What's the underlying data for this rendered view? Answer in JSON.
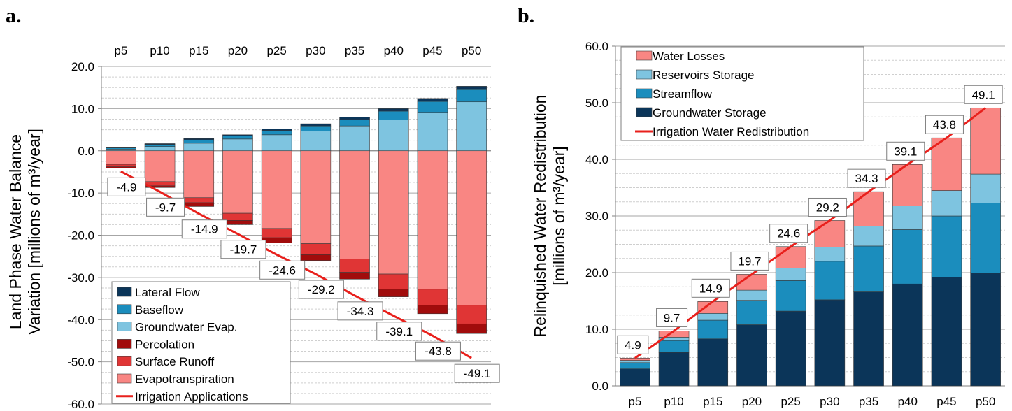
{
  "chart_data": [
    {
      "panel": "a.",
      "type": "bar",
      "stacked": true,
      "ylabel_line1": "Land Phase Water Balance",
      "ylabel_line2": "Variation [millions of m³/year]",
      "ylim": [
        -60,
        20
      ],
      "yticks": [
        "20.0",
        "10.0",
        "0.0",
        "-10.0",
        "-20.0",
        "-30.0",
        "-40.0",
        "-50.0",
        "-60.0"
      ],
      "categories": [
        "p5",
        "p10",
        "p15",
        "p20",
        "p25",
        "p30",
        "p35",
        "p40",
        "p45",
        "p50"
      ],
      "category_axis_position": "top",
      "grid": true,
      "legend_position": "bottom-left",
      "positive_series": [
        {
          "name": "Groundwater Evap.",
          "color": "#7ec4e0",
          "values": [
            0.4,
            1.0,
            1.8,
            2.8,
            3.8,
            4.7,
            5.9,
            7.3,
            9.1,
            11.6
          ]
        },
        {
          "name": "Baseflow",
          "color": "#1b8dbd",
          "values": [
            0.3,
            0.5,
            0.8,
            0.7,
            1.0,
            1.2,
            1.5,
            2.1,
            2.6,
            2.9
          ]
        },
        {
          "name": "Lateral Flow",
          "color": "#0b3559",
          "values": [
            0.1,
            0.2,
            0.3,
            0.3,
            0.4,
            0.5,
            0.6,
            0.6,
            0.7,
            0.8
          ]
        }
      ],
      "negative_series": [
        {
          "name": "Evapotranspiration",
          "color": "#f98683",
          "values": [
            -3.2,
            -7.3,
            -11.1,
            -14.8,
            -18.4,
            -22.0,
            -25.6,
            -29.2,
            -32.8,
            -36.6
          ]
        },
        {
          "name": "Surface Runoff",
          "color": "#e03535",
          "values": [
            -0.6,
            -1.0,
            -1.2,
            -1.7,
            -2.2,
            -2.6,
            -3.2,
            -3.6,
            -3.8,
            -4.4
          ]
        },
        {
          "name": "Percolation",
          "color": "#a10c0c",
          "values": [
            -0.3,
            -0.4,
            -0.9,
            -1.0,
            -1.2,
            -1.4,
            -1.6,
            -1.8,
            -2.0,
            -2.3
          ]
        }
      ],
      "line_series": {
        "name": "Irrigation Applications",
        "color": "#e8201c",
        "values": [
          -4.9,
          -9.7,
          -14.9,
          -19.7,
          -24.6,
          -29.2,
          -34.3,
          -39.1,
          -43.8,
          -49.1
        ]
      },
      "data_labels": [
        "-4.9",
        "-9.7",
        "-14.9",
        "-19.7",
        "-24.6",
        "-29.2",
        "-34.3",
        "-39.1",
        "-43.8",
        "-49.1"
      ],
      "legend_order": [
        "Lateral Flow",
        "Baseflow",
        "Groundwater Evap.",
        "Percolation",
        "Surface Runoff",
        "Evapotranspiration",
        "Irrigation Applications"
      ]
    },
    {
      "panel": "b.",
      "type": "bar",
      "stacked": true,
      "ylabel_line1": "Relinquished Water Redistribution",
      "ylabel_line2": "[millions of m³/year]",
      "ylim": [
        0,
        60
      ],
      "yticks": [
        "60.0",
        "50.0",
        "40.0",
        "30.0",
        "20.0",
        "10.0",
        "0.0"
      ],
      "categories": [
        "p5",
        "p10",
        "p15",
        "p20",
        "p25",
        "p30",
        "p35",
        "p40",
        "p45",
        "p50"
      ],
      "category_axis_position": "bottom",
      "grid": true,
      "legend_position": "top-left",
      "series": [
        {
          "name": "Groundwater Storage",
          "color": "#0b3559",
          "values": [
            3.0,
            5.9,
            8.3,
            10.8,
            13.2,
            15.2,
            16.6,
            18.0,
            19.2,
            19.9
          ]
        },
        {
          "name": "Streamflow",
          "color": "#1b8dbd",
          "values": [
            1.1,
            2.1,
            3.3,
            4.3,
            5.4,
            6.8,
            8.1,
            9.6,
            10.8,
            12.4
          ]
        },
        {
          "name": "Reservoirs Storage",
          "color": "#7ec4e0",
          "values": [
            0.4,
            0.6,
            1.2,
            1.8,
            2.2,
            2.5,
            3.5,
            4.2,
            4.5,
            5.1
          ]
        },
        {
          "name": "Water Losses",
          "color": "#f98683",
          "values": [
            0.4,
            1.1,
            2.1,
            2.8,
            3.8,
            4.7,
            6.1,
            7.3,
            9.3,
            11.7
          ]
        }
      ],
      "line_series": {
        "name": "Irrigation Water Redistribution",
        "color": "#e8201c",
        "values": [
          4.9,
          9.7,
          14.9,
          19.7,
          24.6,
          29.2,
          34.3,
          39.1,
          43.8,
          49.1
        ]
      },
      "data_labels": [
        "4.9",
        "9.7",
        "14.9",
        "19.7",
        "24.6",
        "29.2",
        "34.3",
        "39.1",
        "43.8",
        "49.1"
      ],
      "legend_order": [
        "Water Losses",
        "Reservoirs Storage",
        "Streamflow",
        "Groundwater Storage",
        "Irrigation Water Redistribution"
      ]
    }
  ]
}
